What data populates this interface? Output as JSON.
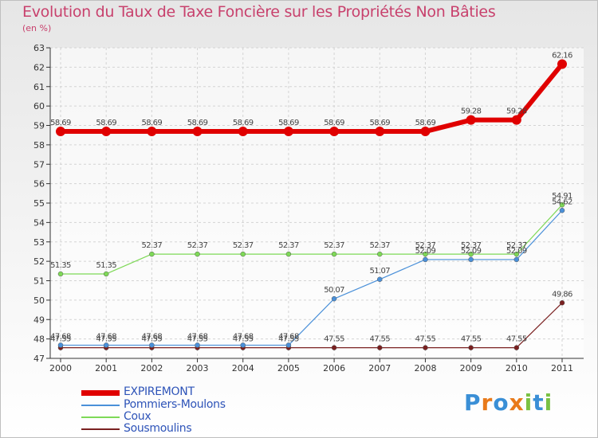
{
  "chart_data": {
    "type": "line",
    "title": "Evolution du Taux de Taxe Foncière sur les Propriétés Non Bâties",
    "ylabel": "(en %)",
    "xlabel": "",
    "ylim": [
      47,
      63
    ],
    "grid": true,
    "categories": [
      "2000",
      "2001",
      "2002",
      "2003",
      "2004",
      "2005",
      "2006",
      "2007",
      "2008",
      "2009",
      "2010",
      "2011"
    ],
    "series": [
      {
        "name": "EXPIREMONT",
        "color": "#e00000",
        "values": [
          58.69,
          58.69,
          58.69,
          58.69,
          58.69,
          58.69,
          58.69,
          58.69,
          58.69,
          59.28,
          59.28,
          62.16
        ]
      },
      {
        "name": "Pommiers-Moulons",
        "color": "#4a90d9",
        "values": [
          47.68,
          47.68,
          47.68,
          47.68,
          47.68,
          47.68,
          50.07,
          51.07,
          52.09,
          52.09,
          52.09,
          54.62
        ]
      },
      {
        "name": "Coux",
        "color": "#7ed957",
        "values": [
          51.35,
          51.35,
          52.37,
          52.37,
          52.37,
          52.37,
          52.37,
          52.37,
          52.37,
          52.37,
          52.37,
          54.91
        ]
      },
      {
        "name": "Sousmoulins",
        "color": "#7a2020",
        "values": [
          47.55,
          47.55,
          47.55,
          47.55,
          47.55,
          47.55,
          47.55,
          47.55,
          47.55,
          47.55,
          47.55,
          49.86
        ]
      }
    ]
  },
  "legend_position": "bottom-left",
  "logo": {
    "letters": [
      "P",
      "r",
      "o",
      "x",
      "i",
      "t",
      "i"
    ],
    "colors": [
      "#3a8fd6",
      "#e87a1a",
      "#3a8fd6",
      "#e87a1a",
      "#7ac143",
      "#3a8fd6",
      "#7ac143"
    ]
  }
}
